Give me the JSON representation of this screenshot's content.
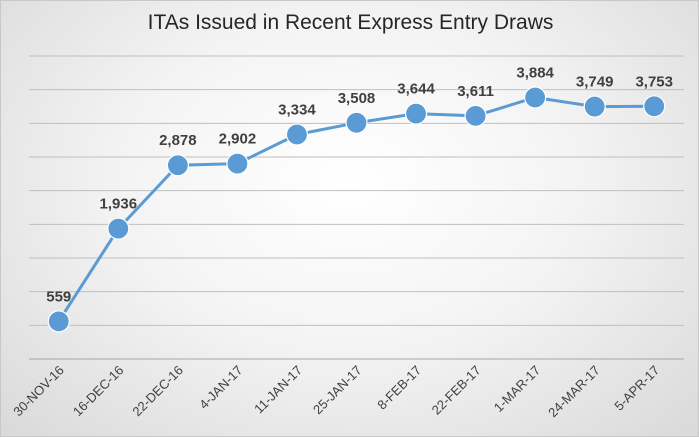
{
  "chart_data": {
    "type": "line",
    "title": "ITAs Issued in Recent Express Entry Draws",
    "xlabel": "",
    "ylabel": "",
    "categories": [
      "30-NOV-16",
      "16-DEC-16",
      "22-DEC-16",
      "4-JAN-17",
      "11-JAN-17",
      "25-JAN-17",
      "8-FEB-17",
      "22-FEB-17",
      "1-MAR-17",
      "24-MAR-17",
      "5-APR-17"
    ],
    "series": [
      {
        "values": [
          559,
          1936,
          2878,
          2902,
          3334,
          3508,
          3644,
          3611,
          3884,
          3749,
          3753
        ],
        "labels": [
          "559",
          "1,936",
          "2,878",
          "2,902",
          "3,334",
          "3,508",
          "3,644",
          "3,611",
          "3,884",
          "3,749",
          "3,753"
        ]
      }
    ],
    "ylim": [
      0,
      4500
    ],
    "ytick_step": 500,
    "grid": true,
    "show_y_tick_labels": false,
    "legend": "none",
    "colors": {
      "line": "#5b9bd5",
      "marker": "#5b9bd5",
      "grid": "#bfbfbf",
      "text": "#404040"
    }
  }
}
